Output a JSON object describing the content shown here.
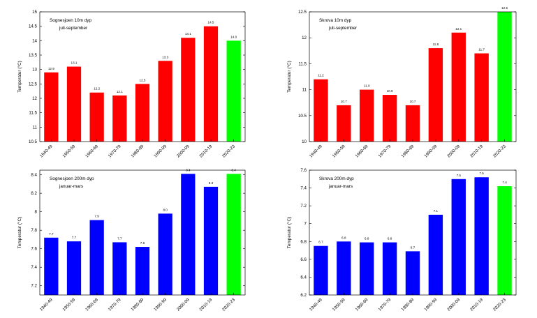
{
  "chart_data": [
    {
      "id": "top-left",
      "type": "bar",
      "title": "Sognesjoen 10m dyp",
      "subtitle": "juli-september",
      "ylabel": "Temperatur (°C)",
      "ylim": [
        10.5,
        15
      ],
      "yticks": [
        10.5,
        11,
        11.5,
        12,
        12.5,
        13,
        13.5,
        14,
        14.5,
        15
      ],
      "categories": [
        "1940-49",
        "1950-59",
        "1960-69",
        "1970-79",
        "1980-89",
        "1990-99",
        "2000-09",
        "2010-19",
        "2020-23"
      ],
      "values": [
        12.9,
        13.1,
        12.2,
        12.1,
        12.5,
        13.3,
        14.1,
        14.5,
        14.0
      ],
      "labels": [
        "12.9",
        "13.1",
        "12.2",
        "12.1",
        "12.5",
        "13.3",
        "14.1",
        "14.5",
        "14.0"
      ],
      "colors": [
        "#ff0000",
        "#ff0000",
        "#ff0000",
        "#ff0000",
        "#ff0000",
        "#ff0000",
        "#ff0000",
        "#ff0000",
        "#00ff00"
      ]
    },
    {
      "id": "top-right",
      "type": "bar",
      "title": "Skrova 10m dyp",
      "subtitle": "juli-september",
      "ylabel": "Temperatur (°C)",
      "ylim": [
        10,
        12.5
      ],
      "yticks": [
        10,
        10.5,
        11,
        11.5,
        12,
        12.5
      ],
      "categories": [
        "1940-49",
        "1950-59",
        "1960-69",
        "1970-79",
        "1980-89",
        "1990-99",
        "2000-09",
        "2010-19",
        "2020-23"
      ],
      "values": [
        11.2,
        10.7,
        11.0,
        10.9,
        10.7,
        11.8,
        12.1,
        11.7,
        12.5
      ],
      "labels": [
        "11.2",
        "10.7",
        "11.0",
        "10.9",
        "10.7",
        "11.8",
        "12.1",
        "11.7",
        "12.5"
      ],
      "colors": [
        "#ff0000",
        "#ff0000",
        "#ff0000",
        "#ff0000",
        "#ff0000",
        "#ff0000",
        "#ff0000",
        "#ff0000",
        "#00ff00"
      ]
    },
    {
      "id": "bottom-left",
      "type": "bar",
      "title": "Sognesjoen 200m dyp",
      "subtitle": "januar-mars",
      "ylabel": "Temperatur (°C)",
      "ylim": [
        7.1,
        8.45
      ],
      "yticks": [
        7.2,
        7.4,
        7.6,
        7.8,
        8,
        8.2,
        8.4
      ],
      "categories": [
        "1940-49",
        "1950-59",
        "1960-69",
        "1970-79",
        "1980-89",
        "1990-99",
        "2000-09",
        "2010-19",
        "2020-23"
      ],
      "values": [
        7.72,
        7.68,
        7.91,
        7.67,
        7.62,
        7.98,
        8.41,
        8.27,
        8.41
      ],
      "labels": [
        "7.7",
        "7.7",
        "7.9",
        "7.7",
        "7.6",
        "8.0",
        "8.4",
        "8.3",
        "8.4"
      ],
      "colors": [
        "#0000ff",
        "#0000ff",
        "#0000ff",
        "#0000ff",
        "#0000ff",
        "#0000ff",
        "#0000ff",
        "#0000ff",
        "#00ff00"
      ]
    },
    {
      "id": "bottom-right",
      "type": "bar",
      "title": "Skrova 200m dyp",
      "subtitle": "januar-mars",
      "ylabel": "Temperatur (°C)",
      "ylim": [
        6.2,
        7.6
      ],
      "yticks": [
        6.2,
        6.4,
        6.6,
        6.8,
        7,
        7.2,
        7.4,
        7.6
      ],
      "categories": [
        "1940-49",
        "1950-59",
        "1960-69",
        "1970-79",
        "1980-89",
        "1990-99",
        "2000-09",
        "2010-19",
        "2020-23"
      ],
      "values": [
        6.75,
        6.8,
        6.79,
        6.79,
        6.69,
        7.1,
        7.5,
        7.52,
        7.42
      ],
      "labels": [
        "6.7",
        "6.8",
        "6.8",
        "6.8",
        "6.7",
        "7.1",
        "7.5",
        "7.5",
        "7.4"
      ],
      "colors": [
        "#0000ff",
        "#0000ff",
        "#0000ff",
        "#0000ff",
        "#0000ff",
        "#0000ff",
        "#0000ff",
        "#0000ff",
        "#00ff00"
      ]
    }
  ]
}
